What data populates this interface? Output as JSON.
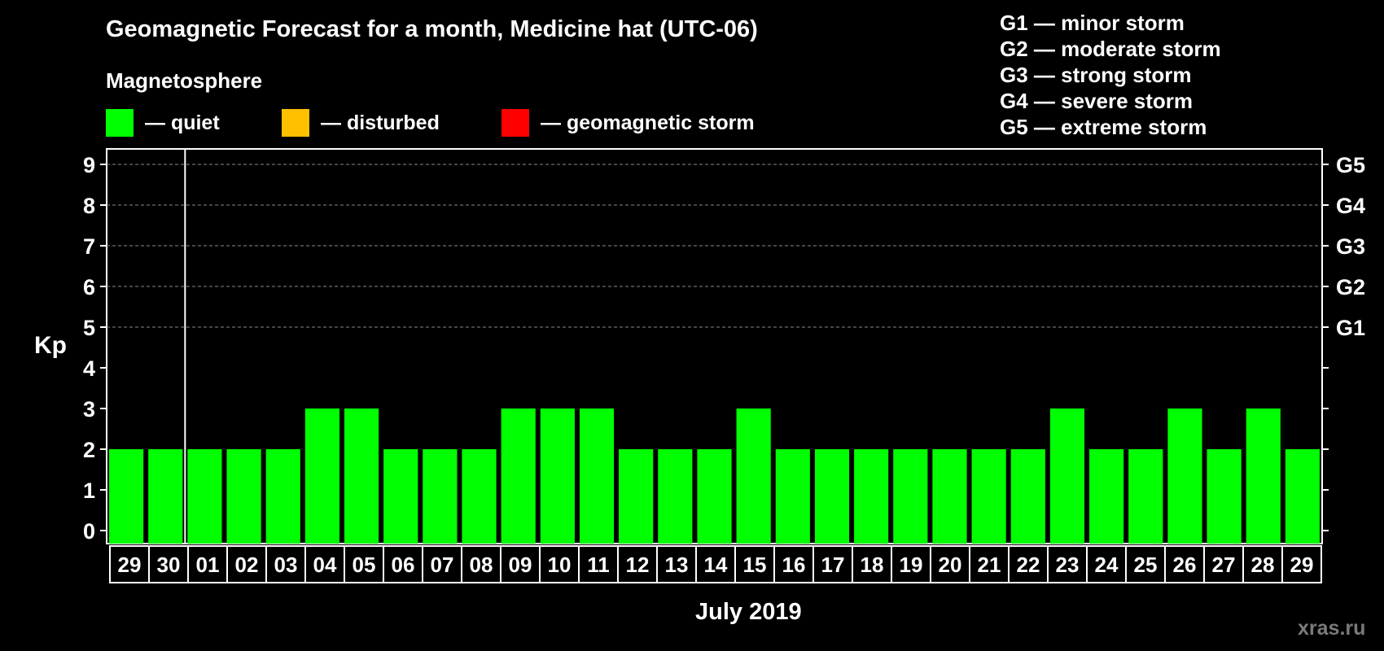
{
  "title": "Geomagnetic Forecast for a month, Medicine hat (UTC-06)",
  "magnetosphere_label": "Magnetosphere",
  "legend": [
    {
      "label": "— quiet",
      "color": "#00ff00"
    },
    {
      "label": "— disturbed",
      "color": "#ffc000"
    },
    {
      "label": "— geomagnetic storm",
      "color": "#ff0000"
    }
  ],
  "storm_levels": [
    "G1 — minor storm",
    "G2 — moderate storm",
    "G3 — strong storm",
    "G4 — severe storm",
    "G5 — extreme storm"
  ],
  "watermark": "xras.ru",
  "chart_data": {
    "type": "bar",
    "title": "Geomagnetic Forecast for a month, Medicine hat (UTC-06)",
    "xlabel": "July 2019",
    "ylabel": "Kp",
    "ylim": [
      0,
      9
    ],
    "yticks": [
      "0",
      "1",
      "2",
      "3",
      "4",
      "5",
      "6",
      "7",
      "8",
      "9"
    ],
    "secondary_axis": [
      {
        "kp": 5,
        "label": "G1"
      },
      {
        "kp": 6,
        "label": "G2"
      },
      {
        "kp": 7,
        "label": "G3"
      },
      {
        "kp": 8,
        "label": "G4"
      },
      {
        "kp": 9,
        "label": "G5"
      }
    ],
    "grid": "dashed at Kp 5-9",
    "month_boundary_after": "30",
    "categories": [
      "29",
      "30",
      "01",
      "02",
      "03",
      "04",
      "05",
      "06",
      "07",
      "08",
      "09",
      "10",
      "11",
      "12",
      "13",
      "14",
      "15",
      "16",
      "17",
      "18",
      "19",
      "20",
      "21",
      "22",
      "23",
      "24",
      "25",
      "26",
      "27",
      "28",
      "29"
    ],
    "values": [
      2,
      2,
      2,
      2,
      2,
      3,
      3,
      2,
      2,
      2,
      3,
      3,
      3,
      2,
      2,
      2,
      3,
      2,
      2,
      2,
      2,
      2,
      2,
      2,
      3,
      2,
      2,
      3,
      2,
      3,
      2
    ],
    "bar_color": "#00ff00"
  }
}
